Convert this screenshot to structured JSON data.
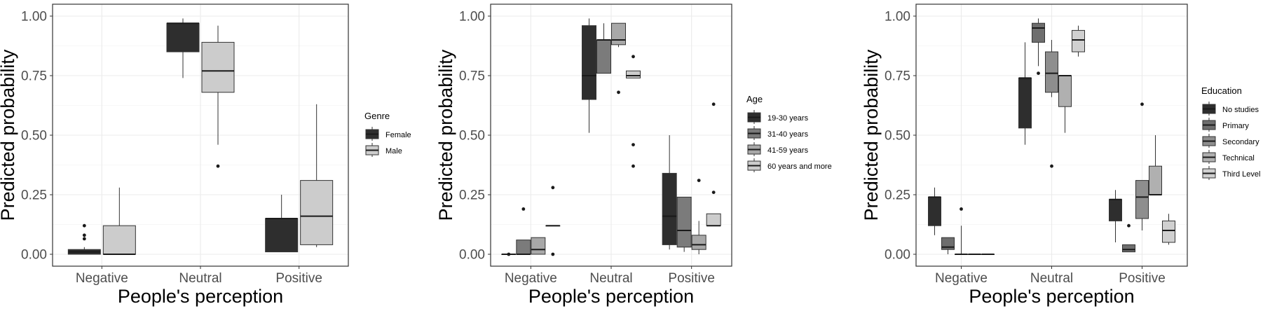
{
  "chart_data": [
    {
      "type": "boxplot",
      "xlabel": "People's perception",
      "ylabel": "Predicted probability",
      "ylim": [
        0,
        1
      ],
      "yticks": [
        "0.00",
        "0.25",
        "0.50",
        "0.75",
        "1.00"
      ],
      "ytick_values": [
        0,
        0.25,
        0.5,
        0.75,
        1.0
      ],
      "categories": [
        "Negative",
        "Neutral",
        "Positive"
      ],
      "grid": true,
      "legend": {
        "title": "Genre",
        "position": "right",
        "entries": [
          {
            "label": "Female",
            "color": "#2e2e2e"
          },
          {
            "label": "Male",
            "color": "#cccccc"
          }
        ]
      },
      "series": [
        {
          "name": "Female",
          "boxes": [
            {
              "category": "Negative",
              "min": 0.0,
              "q1": 0.0,
              "median": 0.01,
              "q3": 0.02,
              "max": 0.03,
              "outliers": [
                0.12,
                0.08,
                0.065
              ]
            },
            {
              "category": "Neutral",
              "min": 0.74,
              "q1": 0.85,
              "median": 0.97,
              "q3": 0.97,
              "max": 0.99,
              "outliers": []
            },
            {
              "category": "Positive",
              "min": 0.01,
              "q1": 0.01,
              "median": 0.15,
              "q3": 0.15,
              "max": 0.25,
              "outliers": []
            }
          ]
        },
        {
          "name": "Male",
          "boxes": [
            {
              "category": "Negative",
              "min": 0.0,
              "q1": 0.0,
              "median": 0.0,
              "q3": 0.12,
              "max": 0.28,
              "outliers": []
            },
            {
              "category": "Neutral",
              "min": 0.46,
              "q1": 0.68,
              "median": 0.77,
              "q3": 0.89,
              "max": 0.96,
              "outliers": [
                0.37
              ]
            },
            {
              "category": "Positive",
              "min": 0.03,
              "q1": 0.04,
              "median": 0.16,
              "q3": 0.31,
              "max": 0.63,
              "outliers": []
            }
          ]
        }
      ]
    },
    {
      "type": "boxplot",
      "xlabel": "People's perception",
      "ylabel": "Predicted probability",
      "ylim": [
        0,
        1
      ],
      "yticks": [
        "0.00",
        "0.25",
        "0.50",
        "0.75",
        "1.00"
      ],
      "ytick_values": [
        0,
        0.25,
        0.5,
        0.75,
        1.0
      ],
      "categories": [
        "Negative",
        "Neutral",
        "Positive"
      ],
      "grid": true,
      "legend": {
        "title": "Age",
        "position": "right",
        "entries": [
          {
            "label": "19-30 years",
            "color": "#2e2e2e"
          },
          {
            "label": "31-40 years",
            "color": "#7b7b7b"
          },
          {
            "label": "41-59 years",
            "color": "#a8a8a8"
          },
          {
            "label": "60 years and more",
            "color": "#cccccc"
          }
        ]
      },
      "series": [
        {
          "name": "19-30 years",
          "boxes": [
            {
              "category": "Negative",
              "min": 0.0,
              "q1": 0.0,
              "median": 0.0,
              "q3": 0.0,
              "max": 0.0,
              "outliers": [
                0.0
              ]
            },
            {
              "category": "Neutral",
              "min": 0.51,
              "q1": 0.65,
              "median": 0.75,
              "q3": 0.96,
              "max": 0.99,
              "outliers": []
            },
            {
              "category": "Positive",
              "min": 0.02,
              "q1": 0.04,
              "median": 0.16,
              "q3": 0.34,
              "max": 0.5,
              "outliers": []
            }
          ]
        },
        {
          "name": "31-40 years",
          "boxes": [
            {
              "category": "Negative",
              "min": 0.0,
              "q1": 0.0,
              "median": 0.0,
              "q3": 0.06,
              "max": 0.06,
              "outliers": [
                0.19
              ]
            },
            {
              "category": "Neutral",
              "min": 0.76,
              "q1": 0.76,
              "median": 0.9,
              "q3": 0.9,
              "max": 0.97,
              "outliers": []
            },
            {
              "category": "Positive",
              "min": 0.01,
              "q1": 0.03,
              "median": 0.1,
              "q3": 0.24,
              "max": 0.24,
              "outliers": []
            }
          ]
        },
        {
          "name": "41-59 years",
          "boxes": [
            {
              "category": "Negative",
              "min": 0.0,
              "q1": 0.0,
              "median": 0.02,
              "q3": 0.07,
              "max": 0.07,
              "outliers": []
            },
            {
              "category": "Neutral",
              "min": 0.87,
              "q1": 0.88,
              "median": 0.9,
              "q3": 0.97,
              "max": 0.97,
              "outliers": [
                0.68
              ]
            },
            {
              "category": "Positive",
              "min": 0.0,
              "q1": 0.02,
              "median": 0.04,
              "q3": 0.08,
              "max": 0.14,
              "outliers": [
                0.31
              ]
            }
          ]
        },
        {
          "name": "60 years and more",
          "boxes": [
            {
              "category": "Negative",
              "min": 0.12,
              "q1": 0.12,
              "median": 0.12,
              "q3": 0.12,
              "max": 0.12,
              "outliers": [
                0.28,
                0.0
              ]
            },
            {
              "category": "Neutral",
              "min": 0.74,
              "q1": 0.74,
              "median": 0.75,
              "q3": 0.77,
              "max": 0.77,
              "outliers": [
                0.83,
                0.46,
                0.37
              ]
            },
            {
              "category": "Positive",
              "min": 0.12,
              "q1": 0.12,
              "median": 0.12,
              "q3": 0.17,
              "max": 0.17,
              "outliers": [
                0.63,
                0.26
              ]
            }
          ]
        }
      ]
    },
    {
      "type": "boxplot",
      "xlabel": "People's perception",
      "ylabel": "Predicted probability",
      "ylim": [
        0,
        1
      ],
      "yticks": [
        "0.00",
        "0.25",
        "0.50",
        "0.75",
        "1.00"
      ],
      "ytick_values": [
        0,
        0.25,
        0.5,
        0.75,
        1.0
      ],
      "categories": [
        "Negative",
        "Neutral",
        "Positive"
      ],
      "grid": true,
      "legend": {
        "title": "Education",
        "position": "right",
        "entries": [
          {
            "label": "No studies",
            "color": "#2e2e2e"
          },
          {
            "label": "Primary",
            "color": "#6e6e6e"
          },
          {
            "label": "Secondary",
            "color": "#8e8e8e"
          },
          {
            "label": "Technical",
            "color": "#b0b0b0"
          },
          {
            "label": "Third Level",
            "color": "#d0d0d0"
          }
        ]
      },
      "series": [
        {
          "name": "No studies",
          "boxes": [
            {
              "category": "Negative",
              "min": 0.08,
              "q1": 0.12,
              "median": 0.24,
              "q3": 0.24,
              "max": 0.28,
              "outliers": []
            },
            {
              "category": "Neutral",
              "min": 0.46,
              "q1": 0.53,
              "median": 0.74,
              "q3": 0.74,
              "max": 0.89,
              "outliers": []
            },
            {
              "category": "Positive",
              "min": 0.05,
              "q1": 0.14,
              "median": 0.23,
              "q3": 0.23,
              "max": 0.27,
              "outliers": []
            }
          ]
        },
        {
          "name": "Primary",
          "boxes": [
            {
              "category": "Negative",
              "min": 0.0,
              "q1": 0.02,
              "median": 0.03,
              "q3": 0.07,
              "max": 0.07,
              "outliers": []
            },
            {
              "category": "Neutral",
              "min": 0.79,
              "q1": 0.89,
              "median": 0.95,
              "q3": 0.97,
              "max": 0.99,
              "outliers": [
                0.76
              ]
            },
            {
              "category": "Positive",
              "min": 0.01,
              "q1": 0.01,
              "median": 0.02,
              "q3": 0.04,
              "max": 0.04,
              "outliers": [
                0.12
              ]
            }
          ]
        },
        {
          "name": "Secondary",
          "boxes": [
            {
              "category": "Negative",
              "min": 0.0,
              "q1": 0.0,
              "median": 0.0,
              "q3": 0.0,
              "max": 0.12,
              "outliers": [
                0.19
              ]
            },
            {
              "category": "Neutral",
              "min": 0.66,
              "q1": 0.68,
              "median": 0.76,
              "q3": 0.85,
              "max": 0.9,
              "outliers": [
                0.37
              ]
            },
            {
              "category": "Positive",
              "min": 0.1,
              "q1": 0.15,
              "median": 0.24,
              "q3": 0.31,
              "max": 0.31,
              "outliers": [
                0.63
              ]
            }
          ]
        },
        {
          "name": "Technical",
          "boxes": [
            {
              "category": "Negative",
              "min": 0.0,
              "q1": 0.0,
              "median": 0.0,
              "q3": 0.0,
              "max": 0.0,
              "outliers": []
            },
            {
              "category": "Neutral",
              "min": 0.51,
              "q1": 0.62,
              "median": 0.75,
              "q3": 0.75,
              "max": 0.75,
              "outliers": []
            },
            {
              "category": "Positive",
              "min": 0.25,
              "q1": 0.25,
              "median": 0.25,
              "q3": 0.37,
              "max": 0.5,
              "outliers": []
            }
          ]
        },
        {
          "name": "Third Level",
          "boxes": [
            {
              "category": "Negative",
              "min": 0.0,
              "q1": 0.0,
              "median": 0.0,
              "q3": 0.0,
              "max": 0.0,
              "outliers": []
            },
            {
              "category": "Neutral",
              "min": 0.83,
              "q1": 0.85,
              "median": 0.9,
              "q3": 0.94,
              "max": 0.96,
              "outliers": []
            },
            {
              "category": "Positive",
              "min": 0.04,
              "q1": 0.05,
              "median": 0.1,
              "q3": 0.14,
              "max": 0.17,
              "outliers": []
            }
          ]
        }
      ]
    }
  ]
}
